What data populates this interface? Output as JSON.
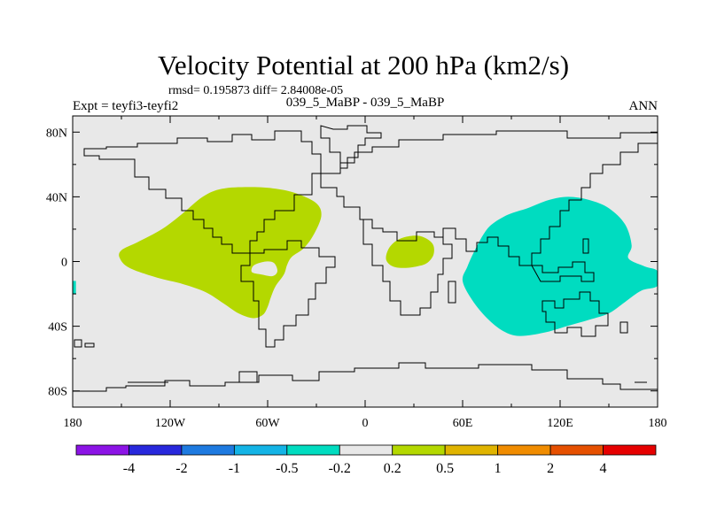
{
  "chart_data": {
    "type": "contour map",
    "title": "Velocity Potential at 200 hPa (km2/s)",
    "stats": "rmsd= 0.195873 diff= 2.84008e-05",
    "left_label": "Expt = teyfi3-teyfi2",
    "center_label": "039_5_MaBP - 039_5_MaBP",
    "right_label": "ANN",
    "projection": "cylindrical equidistant",
    "xlim": [
      -180,
      180
    ],
    "ylim": [
      -90,
      90
    ],
    "x_ticks": [
      {
        "value": -180,
        "label": "180"
      },
      {
        "value": -120,
        "label": "120W"
      },
      {
        "value": -60,
        "label": "60W"
      },
      {
        "value": 0,
        "label": "0"
      },
      {
        "value": 60,
        "label": "60E"
      },
      {
        "value": 120,
        "label": "120E"
      },
      {
        "value": 180,
        "label": "180"
      }
    ],
    "y_ticks": [
      {
        "value": 80,
        "label": "80N"
      },
      {
        "value": 40,
        "label": "40N"
      },
      {
        "value": 0,
        "label": "0"
      },
      {
        "value": -40,
        "label": "40S"
      },
      {
        "value": -80,
        "label": "80S"
      }
    ],
    "colorbar": {
      "colors": [
        "#8c14e6",
        "#2828dc",
        "#1e7ae0",
        "#14b4e6",
        "#00dcc0",
        "#e8e8e8",
        "#b4d800",
        "#e0b400",
        "#f08c00",
        "#e65000",
        "#e60000"
      ],
      "labels": [
        "-4",
        "-2",
        "-1",
        "-0.5",
        "-0.2",
        "0.2",
        "0.5",
        "1",
        "2",
        "4"
      ]
    },
    "regions": [
      {
        "name": "americas-positive-anomaly",
        "level_range": "0.2 to 0.5",
        "color": "#b4d800",
        "polygon": [
          [
            -150,
            7
          ],
          [
            -140,
            12
          ],
          [
            -125,
            20
          ],
          [
            -112,
            30
          ],
          [
            -100,
            40
          ],
          [
            -88,
            45
          ],
          [
            -70,
            46
          ],
          [
            -55,
            45
          ],
          [
            -42,
            42
          ],
          [
            -30,
            36
          ],
          [
            -27,
            28
          ],
          [
            -32,
            16
          ],
          [
            -38,
            8
          ],
          [
            -45,
            3
          ],
          [
            -48,
            -2
          ],
          [
            -50,
            -8
          ],
          [
            -55,
            -15
          ],
          [
            -58,
            -22
          ],
          [
            -60,
            -28
          ],
          [
            -63,
            -33
          ],
          [
            -69,
            -35
          ],
          [
            -78,
            -32
          ],
          [
            -87,
            -26
          ],
          [
            -98,
            -19
          ],
          [
            -112,
            -14
          ],
          [
            -128,
            -10
          ],
          [
            -145,
            -4
          ],
          [
            -151,
            2
          ]
        ]
      },
      {
        "name": "africa-positive-anomaly",
        "level_range": "0.2 to 0.5",
        "color": "#b4d800",
        "polygon": [
          [
            13,
            1
          ],
          [
            14,
            7
          ],
          [
            18,
            12
          ],
          [
            24,
            15
          ],
          [
            32,
            16
          ],
          [
            38,
            14
          ],
          [
            42,
            10
          ],
          [
            42,
            4
          ],
          [
            38,
            -1
          ],
          [
            32,
            -3
          ],
          [
            24,
            -4
          ],
          [
            17,
            -3
          ]
        ]
      },
      {
        "name": "pacific-negative-anomaly",
        "level_range": "-0.5 to -0.2",
        "color": "#00dcc0",
        "polygon": [
          [
            60,
            -12
          ],
          [
            63,
            -3
          ],
          [
            68,
            8
          ],
          [
            73,
            17
          ],
          [
            78,
            23
          ],
          [
            88,
            29
          ],
          [
            100,
            33
          ],
          [
            113,
            38
          ],
          [
            125,
            40
          ],
          [
            138,
            38
          ],
          [
            150,
            33
          ],
          [
            160,
            23
          ],
          [
            164,
            10
          ],
          [
            162,
            2
          ],
          [
            172,
            -3
          ],
          [
            180,
            -6
          ],
          [
            180,
            -15
          ],
          [
            170,
            -18
          ],
          [
            160,
            -25
          ],
          [
            150,
            -32
          ],
          [
            138,
            -36
          ],
          [
            124,
            -40
          ],
          [
            110,
            -44
          ],
          [
            95,
            -46
          ],
          [
            85,
            -43
          ],
          [
            75,
            -35
          ],
          [
            66,
            -24
          ]
        ]
      },
      {
        "name": "dateline-negative-anomaly",
        "level_range": "-0.5 to -0.2",
        "color": "#00dcc0",
        "polygon": [
          [
            -180,
            -12
          ],
          [
            -178,
            -12
          ],
          [
            -178,
            -20
          ],
          [
            -180,
            -20
          ]
        ]
      }
    ],
    "holes": [
      {
        "name": "bolivia-hole",
        "color": "#e8e8e8",
        "polygon": [
          [
            -70,
            -5
          ],
          [
            -68,
            -2
          ],
          [
            -61,
            0
          ],
          [
            -56,
            -1
          ],
          [
            -54,
            -6
          ],
          [
            -57,
            -9
          ],
          [
            -64,
            -8
          ],
          [
            -69,
            -7
          ]
        ]
      }
    ]
  }
}
